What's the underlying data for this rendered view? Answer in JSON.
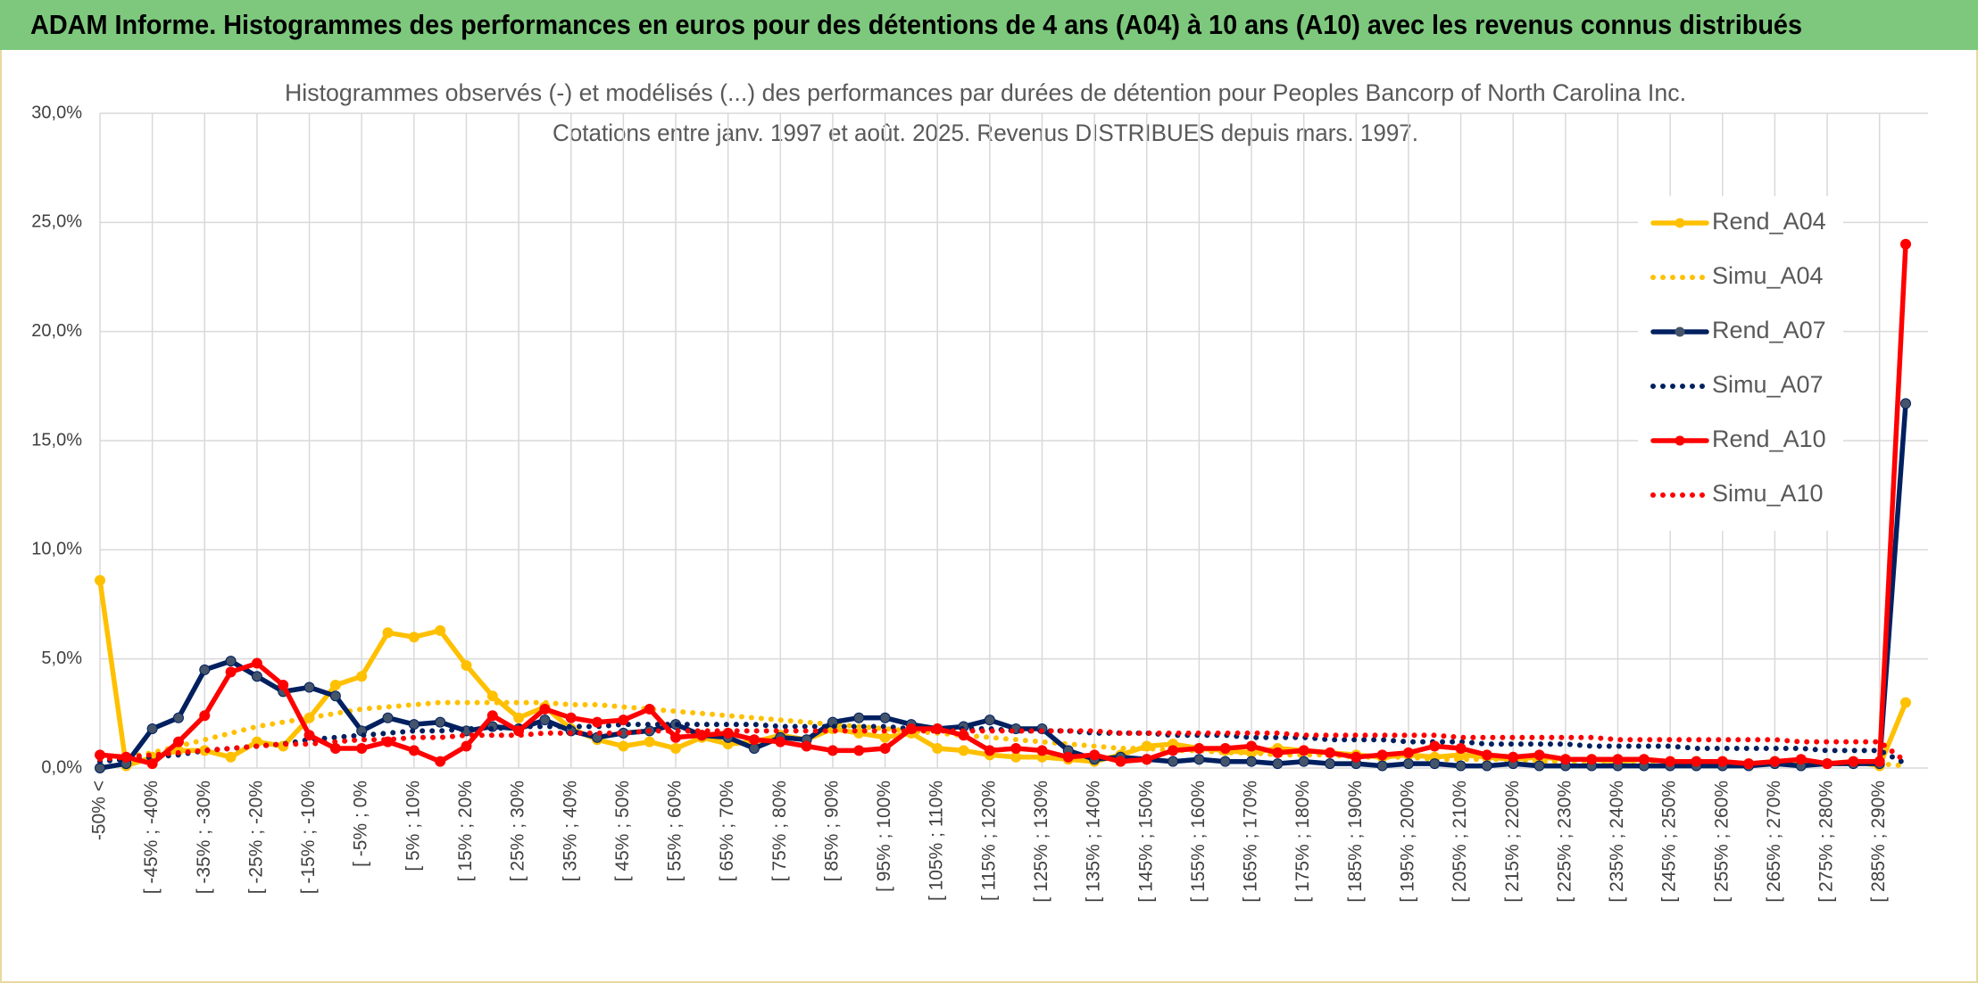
{
  "chart_data": {
    "type": "line",
    "title": "ADAM Informe. Histogrammes des performances en euros pour des détentions de 4 ans (A04) à 10 ans (A10) avec les revenus connus distribués",
    "subtitle": [
      "Histogrammes observés (-) et modélisés (...) des performances par durées de détention pour Peoples Bancorp of North Carolina Inc.",
      "Cotations entre janv. 1997 et août. 2025. Revenus DISTRIBUES depuis mars. 1997."
    ],
    "categories": [
      "-50% <",
      null,
      "[ -45% ; -40%",
      null,
      "[ -35% ; -30%",
      null,
      "[ -25% ; -20%",
      null,
      "[ -15% ; -10%",
      null,
      "[ -5% ; 0%",
      null,
      "[ 5% ; 10%",
      null,
      "[ 15% ; 20%",
      null,
      "[ 25% ; 30%",
      null,
      "[ 35% ; 40%",
      null,
      "[ 45% ; 50%",
      null,
      "[ 55% ; 60%",
      null,
      "[ 65% ; 70%",
      null,
      "[ 75% ; 80%",
      null,
      "[ 85% ; 90%",
      null,
      "[ 95% ; 100%",
      null,
      "[ 105% ; 110%",
      null,
      "[ 115% ; 120%",
      null,
      "[ 125% ; 130%",
      null,
      "[ 135% ; 140%",
      null,
      "[ 145% ; 150%",
      null,
      "[ 155% ; 160%",
      null,
      "[ 165% ; 170%",
      null,
      "[ 175% ; 180%",
      null,
      "[ 185% ; 190%",
      null,
      "[ 195% ; 200%",
      null,
      "[ 205% ; 210%",
      null,
      "[ 215% ; 220%",
      null,
      "[ 225% ; 230%",
      null,
      "[ 235% ; 240%",
      null,
      "[ 245% ; 250%",
      null,
      "[ 255% ; 260%",
      null,
      "[ 265% ; 270%",
      null,
      "[ 275% ; 280%",
      null,
      "[ 285% ; 290%",
      null
    ],
    "series": [
      {
        "name": "Rend_A04",
        "color": "#ffc000",
        "line_style": "solid",
        "marker": true,
        "values": [
          8.6,
          0.1,
          0.5,
          0.8,
          0.8,
          0.5,
          1.2,
          1.0,
          2.3,
          3.8,
          4.2,
          6.2,
          6.0,
          6.3,
          4.7,
          3.3,
          2.3,
          2.8,
          1.8,
          1.3,
          1.0,
          1.2,
          0.9,
          1.4,
          1.1,
          1.2,
          1.5,
          1.3,
          1.8,
          1.6,
          1.4,
          1.6,
          0.9,
          0.8,
          0.6,
          0.5,
          0.5,
          0.4,
          0.3,
          0.6,
          1.0,
          1.1,
          0.9,
          0.8,
          0.7,
          0.9,
          0.8,
          0.7,
          0.6,
          0.5,
          0.6,
          0.5,
          0.6,
          0.5,
          0.4,
          0.5,
          0.4,
          0.4,
          0.3,
          0.4,
          0.3,
          0.3,
          0.3,
          0.2,
          0.3,
          0.2,
          0.2,
          0.3,
          0.1,
          3.0
        ]
      },
      {
        "name": "Simu_A04",
        "color": "#ffc000",
        "line_style": "dotted",
        "marker": false,
        "values": [
          0.3,
          0.5,
          0.7,
          1.0,
          1.3,
          1.6,
          1.9,
          2.1,
          2.3,
          2.5,
          2.7,
          2.8,
          2.9,
          3.0,
          3.0,
          3.0,
          3.0,
          3.0,
          2.9,
          2.9,
          2.8,
          2.7,
          2.6,
          2.5,
          2.4,
          2.3,
          2.2,
          2.1,
          2.0,
          1.9,
          1.8,
          1.7,
          1.6,
          1.5,
          1.4,
          1.3,
          1.2,
          1.1,
          1.0,
          0.9,
          0.9,
          0.8,
          0.8,
          0.7,
          0.7,
          0.6,
          0.6,
          0.6,
          0.5,
          0.5,
          0.5,
          0.4,
          0.4,
          0.4,
          0.4,
          0.3,
          0.3,
          0.3,
          0.3,
          0.3,
          0.3,
          0.2,
          0.2,
          0.2,
          0.2,
          0.2,
          0.2,
          0.2,
          0.2,
          0.1
        ]
      },
      {
        "name": "Rend_A07",
        "color": "#002060",
        "line_style": "solid",
        "marker": true,
        "values": [
          0.0,
          0.2,
          1.8,
          2.3,
          4.5,
          4.9,
          4.2,
          3.5,
          3.7,
          3.3,
          1.7,
          2.3,
          2.0,
          2.1,
          1.7,
          1.9,
          1.8,
          2.2,
          1.7,
          1.4,
          1.6,
          1.7,
          2.0,
          1.5,
          1.4,
          0.9,
          1.4,
          1.3,
          2.1,
          2.3,
          2.3,
          2.0,
          1.8,
          1.9,
          2.2,
          1.8,
          1.8,
          0.8,
          0.4,
          0.5,
          0.4,
          0.3,
          0.4,
          0.3,
          0.3,
          0.2,
          0.3,
          0.2,
          0.2,
          0.1,
          0.2,
          0.2,
          0.1,
          0.1,
          0.2,
          0.1,
          0.1,
          0.1,
          0.1,
          0.1,
          0.1,
          0.1,
          0.1,
          0.1,
          0.2,
          0.1,
          0.2,
          0.2,
          0.2,
          16.7
        ]
      },
      {
        "name": "Simu_A07",
        "color": "#002060",
        "line_style": "dotted",
        "marker": false,
        "values": [
          0.3,
          0.4,
          0.5,
          0.6,
          0.8,
          0.9,
          1.0,
          1.1,
          1.3,
          1.4,
          1.5,
          1.6,
          1.7,
          1.7,
          1.8,
          1.8,
          1.9,
          1.9,
          1.9,
          1.9,
          2.0,
          2.0,
          2.0,
          2.0,
          2.0,
          2.0,
          1.9,
          1.9,
          1.9,
          1.9,
          1.9,
          1.8,
          1.8,
          1.8,
          1.8,
          1.7,
          1.7,
          1.7,
          1.6,
          1.6,
          1.6,
          1.5,
          1.5,
          1.5,
          1.4,
          1.4,
          1.4,
          1.3,
          1.3,
          1.3,
          1.2,
          1.2,
          1.2,
          1.1,
          1.1,
          1.1,
          1.1,
          1.0,
          1.0,
          1.0,
          1.0,
          0.9,
          0.9,
          0.9,
          0.9,
          0.9,
          0.8,
          0.8,
          0.8,
          0.2
        ]
      },
      {
        "name": "Rend_A10",
        "color": "#ff0000",
        "line_style": "solid",
        "marker": true,
        "values": [
          0.6,
          0.5,
          0.2,
          1.2,
          2.4,
          4.4,
          4.8,
          3.8,
          1.5,
          0.9,
          0.9,
          1.2,
          0.8,
          0.3,
          1.0,
          2.4,
          1.7,
          2.7,
          2.3,
          2.1,
          2.2,
          2.7,
          1.4,
          1.5,
          1.6,
          1.3,
          1.2,
          1.0,
          0.8,
          0.8,
          0.9,
          1.8,
          1.8,
          1.5,
          0.8,
          0.9,
          0.8,
          0.5,
          0.6,
          0.3,
          0.4,
          0.8,
          0.9,
          0.9,
          1.0,
          0.7,
          0.8,
          0.7,
          0.5,
          0.6,
          0.7,
          1.0,
          0.9,
          0.6,
          0.5,
          0.6,
          0.4,
          0.4,
          0.4,
          0.4,
          0.3,
          0.3,
          0.3,
          0.2,
          0.3,
          0.4,
          0.2,
          0.3,
          0.3,
          24.0
        ]
      },
      {
        "name": "Simu_A10",
        "color": "#ff0000",
        "line_style": "dotted",
        "marker": false,
        "values": [
          0.4,
          0.5,
          0.6,
          0.7,
          0.8,
          0.9,
          1.0,
          1.1,
          1.1,
          1.2,
          1.3,
          1.3,
          1.4,
          1.4,
          1.5,
          1.5,
          1.5,
          1.6,
          1.6,
          1.6,
          1.6,
          1.7,
          1.7,
          1.7,
          1.7,
          1.7,
          1.7,
          1.7,
          1.7,
          1.7,
          1.7,
          1.7,
          1.7,
          1.7,
          1.7,
          1.7,
          1.7,
          1.7,
          1.7,
          1.6,
          1.6,
          1.6,
          1.6,
          1.6,
          1.6,
          1.6,
          1.5,
          1.5,
          1.5,
          1.5,
          1.5,
          1.5,
          1.4,
          1.4,
          1.4,
          1.4,
          1.4,
          1.4,
          1.3,
          1.3,
          1.3,
          1.3,
          1.3,
          1.3,
          1.3,
          1.2,
          1.2,
          1.2,
          1.2,
          0.3
        ]
      }
    ],
    "ylim": [
      0,
      30
    ],
    "yticks": [
      {
        "value": 0,
        "label": "0,0%"
      },
      {
        "value": 5,
        "label": "5,0%"
      },
      {
        "value": 10,
        "label": "10,0%"
      },
      {
        "value": 15,
        "label": "15,0%"
      },
      {
        "value": 20,
        "label": "20,0%"
      },
      {
        "value": 25,
        "label": "25,0%"
      },
      {
        "value": 30,
        "label": "30,0%"
      }
    ],
    "grid": true,
    "legend": "right"
  }
}
